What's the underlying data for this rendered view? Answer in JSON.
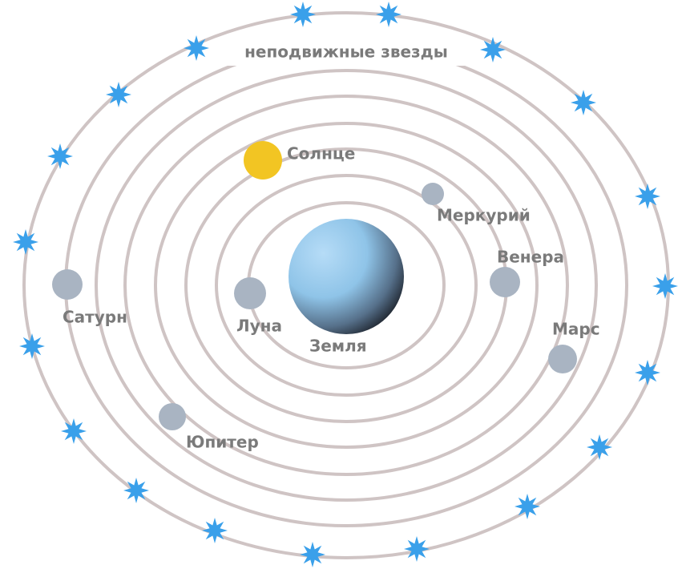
{
  "title": "неподвижные звезды",
  "bodies": [
    {
      "label": "Солнце"
    },
    {
      "label": "Меркурий"
    },
    {
      "label": "Венера"
    },
    {
      "label": "Марс"
    },
    {
      "label": "Сатурн"
    },
    {
      "label": "Луна"
    },
    {
      "label": "Земля"
    },
    {
      "label": "Юпитер"
    }
  ]
}
